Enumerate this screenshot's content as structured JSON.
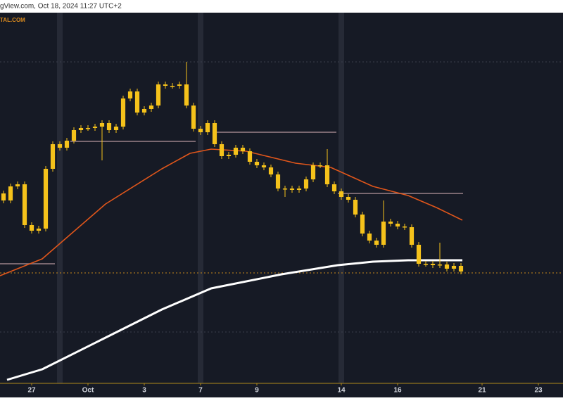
{
  "chart_data": {
    "type": "candlestick",
    "title": "gView.com, Oct 18, 2024 11:27 UTC+2",
    "watermark": "TAL.COM",
    "candle_color": "#f5c21b",
    "xlim": [
      -1.125,
      18.875
    ],
    "ylim": [
      0,
      527
    ],
    "xticks": [
      {
        "value": 0,
        "label": "27"
      },
      {
        "value": 2,
        "label": "Oct"
      },
      {
        "value": 4,
        "label": "3"
      },
      {
        "value": 6,
        "label": "7"
      },
      {
        "value": 8,
        "label": "9"
      },
      {
        "value": 11,
        "label": "14"
      },
      {
        "value": 13,
        "label": "16"
      },
      {
        "value": 16,
        "label": "21"
      },
      {
        "value": 18,
        "label": "23"
      }
    ],
    "x": [
      -1,
      -0.75,
      -0.5,
      -0.25,
      0,
      0.25,
      0.5,
      0.75,
      1,
      1.25,
      1.5,
      1.75,
      2,
      2.25,
      2.5,
      2.75,
      3,
      3.25,
      3.5,
      3.75,
      4,
      4.25,
      4.5,
      4.75,
      5,
      5.25,
      5.5,
      5.75,
      6,
      6.25,
      6.5,
      6.75,
      7,
      7.25,
      7.5,
      7.75,
      8,
      8.25,
      8.5,
      8.75,
      9,
      9.25,
      9.5,
      9.75,
      10,
      10.25,
      10.5,
      10.75,
      11,
      11.25,
      11.5,
      11.75,
      12,
      12.25,
      12.5,
      12.75,
      13,
      13.25,
      13.5,
      13.75,
      14,
      14.25,
      14.5,
      14.75,
      15,
      15.25
    ],
    "open": [
      270,
      260,
      280,
      283,
      225,
      217,
      220,
      305,
      340,
      335,
      345,
      360,
      363,
      363,
      365,
      370,
      360,
      365,
      405,
      415,
      385,
      390,
      395,
      425,
      423,
      423,
      425,
      395,
      362,
      357,
      370,
      340,
      323,
      325,
      335,
      330,
      315,
      310,
      307,
      297,
      277,
      277,
      275,
      277,
      290,
      310,
      310,
      283,
      273,
      265,
      261,
      240,
      213,
      203,
      197,
      230,
      227,
      223,
      222,
      197,
      170,
      170,
      168,
      169,
      163,
      167
    ],
    "high": [
      274,
      284,
      287,
      287,
      229,
      224,
      309,
      344,
      344,
      349,
      364,
      367,
      367,
      369,
      374,
      374,
      369,
      409,
      419,
      419,
      394,
      399,
      429,
      429,
      427,
      429,
      457,
      399,
      366,
      374,
      374,
      344,
      329,
      339,
      339,
      334,
      319,
      314,
      311,
      301,
      281,
      281,
      281,
      294,
      314,
      314,
      333,
      287,
      277,
      269,
      265,
      244,
      217,
      207,
      260,
      234,
      231,
      227,
      226,
      201,
      174,
      174,
      200,
      173,
      171,
      171
    ],
    "low": [
      256,
      256,
      276,
      221,
      213,
      213,
      216,
      301,
      331,
      331,
      341,
      356,
      359,
      359,
      317,
      356,
      356,
      361,
      401,
      381,
      381,
      386,
      391,
      419,
      419,
      419,
      391,
      358,
      353,
      353,
      336,
      319,
      319,
      321,
      326,
      311,
      306,
      303,
      293,
      273,
      265,
      271,
      271,
      273,
      286,
      306,
      279,
      269,
      261,
      257,
      236,
      209,
      199,
      193,
      193,
      223,
      219,
      218,
      193,
      166,
      166,
      164,
      164,
      159,
      159,
      155
    ],
    "close": [
      260,
      280,
      283,
      225,
      217,
      220,
      305,
      340,
      335,
      345,
      360,
      363,
      363,
      365,
      370,
      360,
      365,
      405,
      415,
      385,
      390,
      395,
      425,
      423,
      423,
      425,
      395,
      362,
      357,
      370,
      340,
      323,
      325,
      335,
      330,
      315,
      310,
      307,
      297,
      277,
      277,
      275,
      277,
      290,
      310,
      310,
      283,
      273,
      265,
      261,
      240,
      213,
      203,
      197,
      230,
      227,
      223,
      222,
      197,
      170,
      170,
      168,
      169,
      163,
      167,
      159
    ],
    "moving_averages": [
      {
        "color": "#e0561b",
        "x": [
          -1.125,
          0.375,
          2.625,
          4.625,
          5.625,
          6.375,
          7.625,
          9.375,
          10.625,
          12.125,
          13.375,
          14.375,
          15.3
        ],
        "values": [
          153,
          177,
          255,
          305,
          327,
          333,
          330,
          313,
          307,
          280,
          267,
          250,
          232
        ]
      },
      {
        "color": "#ffffff",
        "x": [
          -0.875,
          0.375,
          2.625,
          4.625,
          6.375,
          8.875,
          10.875,
          12.125,
          13.375,
          15.3
        ],
        "values": [
          5,
          20,
          65,
          105,
          135,
          155,
          168,
          173,
          175,
          175
        ]
      }
    ],
    "levels": [
      {
        "value": 344,
        "x": [
          1.375,
          5.825
        ]
      },
      {
        "value": 357,
        "x": [
          6.5,
          10.825
        ]
      },
      {
        "value": 270,
        "x": [
          10.875,
          15.325
        ]
      },
      {
        "value": 170,
        "x": [
          -1.125,
          0.825
        ]
      }
    ],
    "level_color": "#7a6870",
    "dotted_lines": [
      {
        "value": 457,
        "color": "#3a3f4c"
      },
      {
        "value": 157,
        "color": "#c98a1a"
      },
      {
        "value": 73,
        "color": "#3a3f4c"
      }
    ]
  }
}
